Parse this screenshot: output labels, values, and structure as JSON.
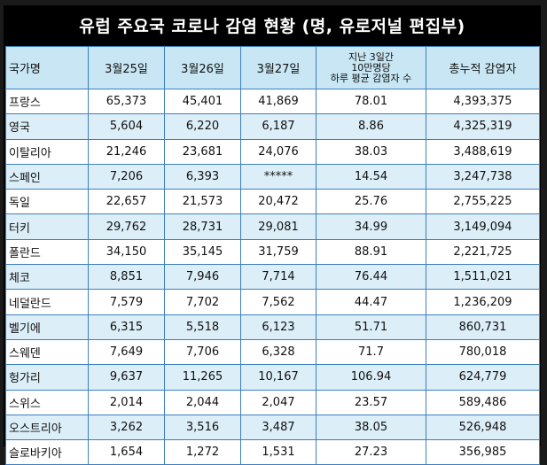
{
  "title": "유럽 주요국 코로나 감염 현황 (명, 유로저널 편집부)",
  "headers": {
    "country": "국가명",
    "d1": "3월25일",
    "d2": "3월26일",
    "d3": "3월27일",
    "avg_line1": "지난 3일간",
    "avg_line2": "10만명당",
    "avg_line3": "하루 평균 감염자 수",
    "total": "총누적 감염자"
  },
  "rows": [
    {
      "country": "프랑스",
      "d1": "65,373",
      "d2": "45,401",
      "d3": "41,869",
      "avg": "78.01",
      "total": "4,393,375"
    },
    {
      "country": "영국",
      "d1": "5,604",
      "d2": "6,220",
      "d3": "6,187",
      "avg": "8.86",
      "total": "4,325,319"
    },
    {
      "country": "이탈리아",
      "d1": "21,246",
      "d2": "23,681",
      "d3": "24,076",
      "avg": "38.03",
      "total": "3,488,619"
    },
    {
      "country": "스페인",
      "d1": "7,206",
      "d2": "6,393",
      "d3": "*****",
      "avg": "14.54",
      "total": "3,247,738"
    },
    {
      "country": "독일",
      "d1": "22,657",
      "d2": "21,573",
      "d3": "20,472",
      "avg": "25.76",
      "total": "2,755,225"
    },
    {
      "country": "터키",
      "d1": "29,762",
      "d2": "28,731",
      "d3": "29,081",
      "avg": "34.99",
      "total": "3,149,094"
    },
    {
      "country": "폴란드",
      "d1": "34,150",
      "d2": "35,145",
      "d3": "31,759",
      "avg": "88.91",
      "total": "2,221,725"
    },
    {
      "country": "체코",
      "d1": "8,851",
      "d2": "7,946",
      "d3": "7,714",
      "avg": "76.44",
      "total": "1,511,021"
    },
    {
      "country": "네덜란드",
      "d1": "7,579",
      "d2": "7,702",
      "d3": "7,562",
      "avg": "44.47",
      "total": "1,236,209"
    },
    {
      "country": "벨기에",
      "d1": "6,315",
      "d2": "5,518",
      "d3": "6,123",
      "avg": "51.71",
      "total": "860,731"
    },
    {
      "country": "스웨덴",
      "d1": "7,649",
      "d2": "7,706",
      "d3": "6,328",
      "avg": "71.7",
      "total": "780,018"
    },
    {
      "country": "헝가리",
      "d1": "9,637",
      "d2": "11,265",
      "d3": "10,167",
      "avg": "106.94",
      "total": "624,779"
    },
    {
      "country": "스위스",
      "d1": "2,014",
      "d2": "2,044",
      "d3": "2,047",
      "avg": "23.57",
      "total": "589,486"
    },
    {
      "country": "오스트리아",
      "d1": "3,262",
      "d2": "3,516",
      "d3": "3,487",
      "avg": "38.05",
      "total": "526,948"
    },
    {
      "country": "슬로바키아",
      "d1": "1,654",
      "d2": "1,272",
      "d3": "1,531",
      "avg": "27.23",
      "total": "356,985"
    }
  ],
  "colors": {
    "background": "#000000",
    "header_bg": "#c8e6f3",
    "alt_row_bg": "#dceef8",
    "border": "#3d7fc0"
  }
}
